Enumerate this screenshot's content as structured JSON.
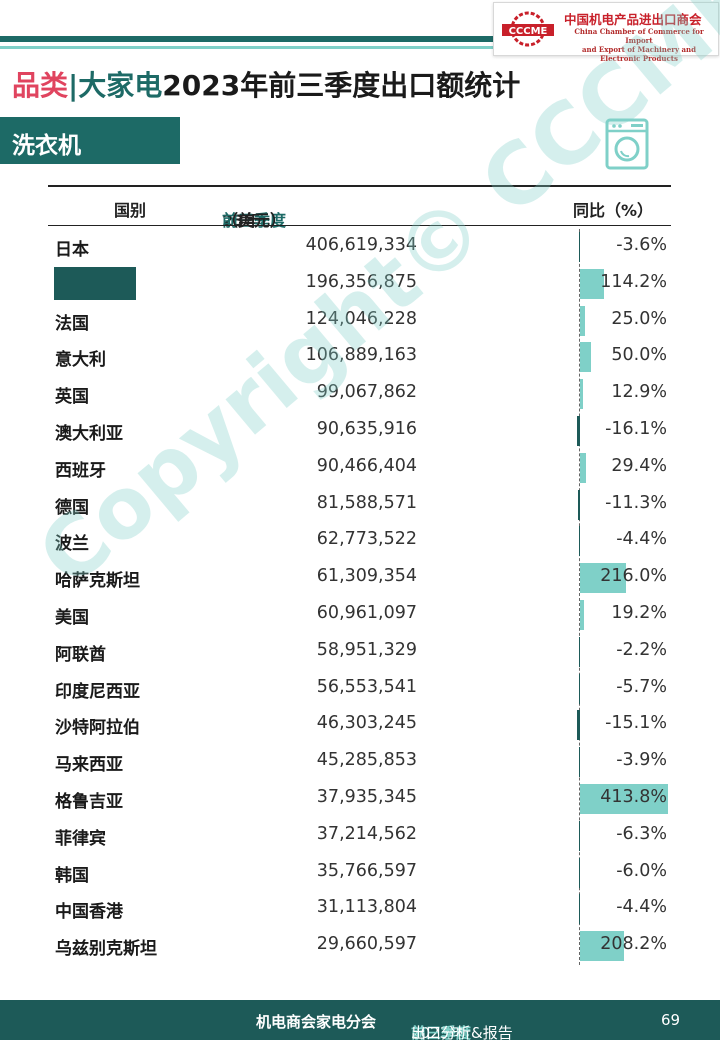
{
  "logo": {
    "mark_text": "CCCME",
    "name_cn": "中国机电产品进出口商会",
    "name_en_1": "China Chamber of Commerce for Import",
    "name_en_2": "and Export of Machinery and Electronic Products"
  },
  "title": {
    "category": "品类",
    "separator": "|",
    "subcategory": "大家电",
    "main": "2023年前三季度出口额统计"
  },
  "section": {
    "label": "洗衣机",
    "icon": "washing-machine-icon"
  },
  "table": {
    "col_country": "国别",
    "col_value_prefix": "23年",
    "col_value_highlight": "前三季度",
    "col_value_suffix": "（美元）",
    "col_yoy": "同比（%）",
    "rows": [
      {
        "country": "日本",
        "value": "406,619,334",
        "yoy": "-3.6%",
        "yoy_num": -3.6
      },
      {
        "country": "",
        "redacted": true,
        "value": "196,356,875",
        "yoy": "114.2%",
        "yoy_num": 114.2
      },
      {
        "country": "法国",
        "value": "124,046,228",
        "yoy": "25.0%",
        "yoy_num": 25.0
      },
      {
        "country": "意大利",
        "value": "106,889,163",
        "yoy": "50.0%",
        "yoy_num": 50.0
      },
      {
        "country": "英国",
        "value": "99,067,862",
        "yoy": "12.9%",
        "yoy_num": 12.9
      },
      {
        "country": "澳大利亚",
        "value": "90,635,916",
        "yoy": "-16.1%",
        "yoy_num": -16.1
      },
      {
        "country": "西班牙",
        "value": "90,466,404",
        "yoy": "29.4%",
        "yoy_num": 29.4
      },
      {
        "country": "德国",
        "value": "81,588,571",
        "yoy": "-11.3%",
        "yoy_num": -11.3
      },
      {
        "country": "波兰",
        "value": "62,773,522",
        "yoy": "-4.4%",
        "yoy_num": -4.4
      },
      {
        "country": "哈萨克斯坦",
        "value": "61,309,354",
        "yoy": "216.0%",
        "yoy_num": 216.0
      },
      {
        "country": "美国",
        "value": "60,961,097",
        "yoy": "19.2%",
        "yoy_num": 19.2
      },
      {
        "country": "阿联酋",
        "value": "58,951,329",
        "yoy": "-2.2%",
        "yoy_num": -2.2
      },
      {
        "country": "印度尼西亚",
        "value": "56,553,541",
        "yoy": "-5.7%",
        "yoy_num": -5.7
      },
      {
        "country": "沙特阿拉伯",
        "value": "46,303,245",
        "yoy": "-15.1%",
        "yoy_num": -15.1
      },
      {
        "country": "马来西亚",
        "value": "45,285,853",
        "yoy": "-3.9%",
        "yoy_num": -3.9
      },
      {
        "country": "格鲁吉亚",
        "value": "37,935,345",
        "yoy": "413.8%",
        "yoy_num": 413.8
      },
      {
        "country": "菲律宾",
        "value": "37,214,562",
        "yoy": "-6.3%",
        "yoy_num": -6.3
      },
      {
        "country": "韩国",
        "value": "35,766,597",
        "yoy": "-6.0%",
        "yoy_num": -6.0
      },
      {
        "country": "中国香港",
        "value": "31,113,804",
        "yoy": "-4.4%",
        "yoy_num": -4.4
      },
      {
        "country": "乌兹别克斯坦",
        "value": "29,660,597",
        "yoy": "208.2%",
        "yoy_num": 208.2
      }
    ]
  },
  "colors": {
    "teal_dark": "#1d6a66",
    "teal_light": "#7fd0c8",
    "pink": "#e0445f",
    "negative_bar": "#1d5a58"
  },
  "watermark": "Copyright© CCCME",
  "footer": {
    "org": "机电商会家电分会",
    "year": "2023年",
    "highlight": "前三季度",
    "suffix": "出口分析&报告",
    "page": "69"
  }
}
